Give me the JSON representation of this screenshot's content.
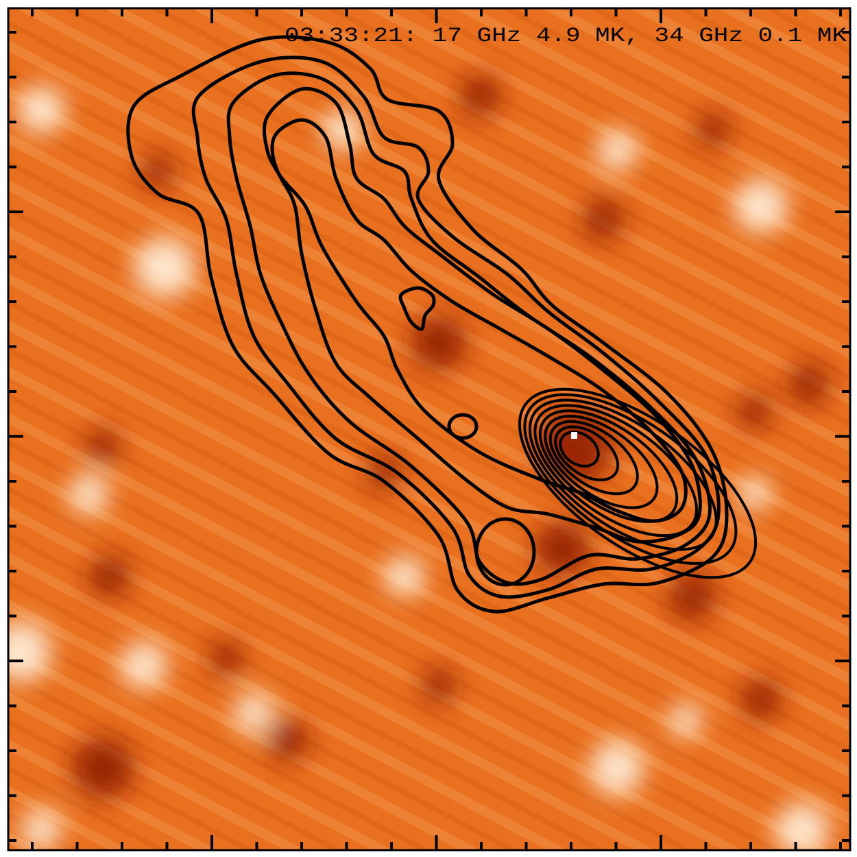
{
  "image": {
    "label": "03:33:21: 17 GHz   4.9 MK, 34 GHz   0.1 MK"
  }
}
